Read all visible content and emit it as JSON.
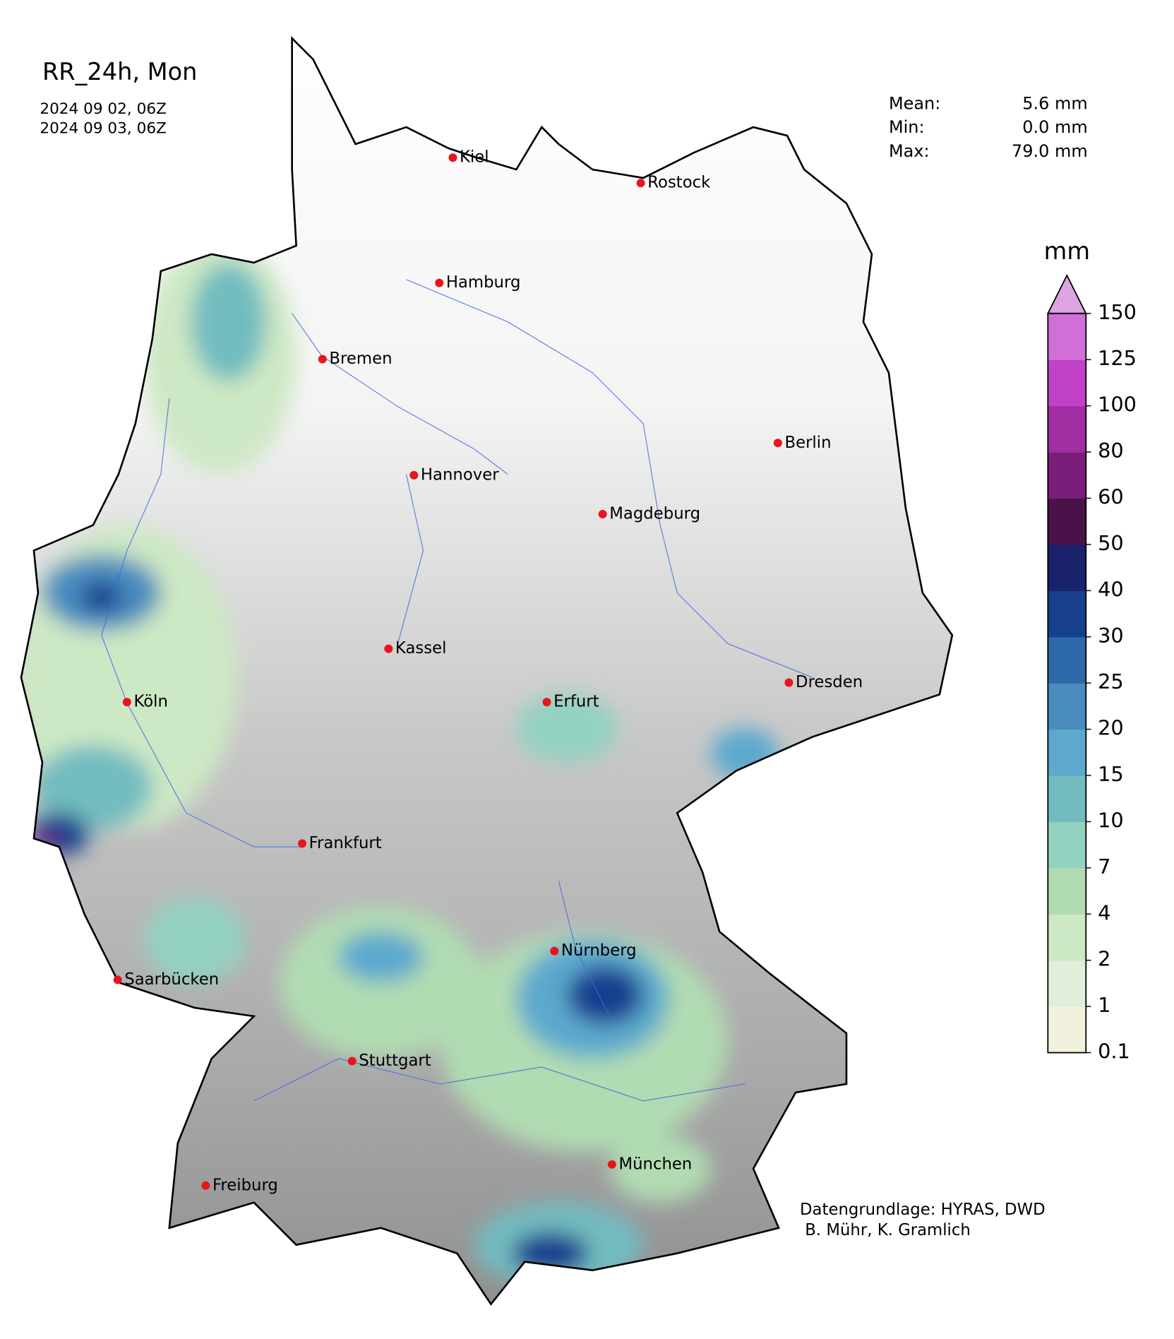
{
  "title": "RR_24h, Mon",
  "period": [
    "2024 09 02, 06Z",
    "2024 09 03, 06Z"
  ],
  "stats": [
    {
      "label": "Mean:",
      "value": "5.6 mm"
    },
    {
      "label": "Min:",
      "value": "0.0 mm"
    },
    {
      "label": "Max:",
      "value": "79.0 mm"
    }
  ],
  "cities": [
    "Kiel",
    "Rostock",
    "Hamburg",
    "Bremen",
    "Berlin",
    "Hannover",
    "Magdeburg",
    "Kassel",
    "Dresden",
    "Köln",
    "Erfurt",
    "Frankfurt",
    "Nürnberg",
    "Saarbücken",
    "Stuttgart",
    "München",
    "Freiburg"
  ],
  "colorbar": {
    "label": "mm",
    "ticks": [
      0.1,
      1,
      2,
      4,
      7,
      10,
      15,
      20,
      25,
      30,
      40,
      50,
      60,
      80,
      100,
      125,
      150
    ],
    "colors": [
      "#f1f1de",
      "#e1eed9",
      "#cde8c4",
      "#b1dcb2",
      "#93d2c1",
      "#72bcc0",
      "#5ca9cd",
      "#4a8cbe",
      "#2e69aa",
      "#163f8e",
      "#19226a",
      "#4b1149",
      "#7a1e7a",
      "#a12ea2",
      "#c141c9",
      "#d16fd9"
    ],
    "extend_color": "#dda3e2"
  },
  "credits": [
    "Datengrundlage: HYRAS, DWD",
    " B. Mühr, K. Gramlich"
  ]
}
